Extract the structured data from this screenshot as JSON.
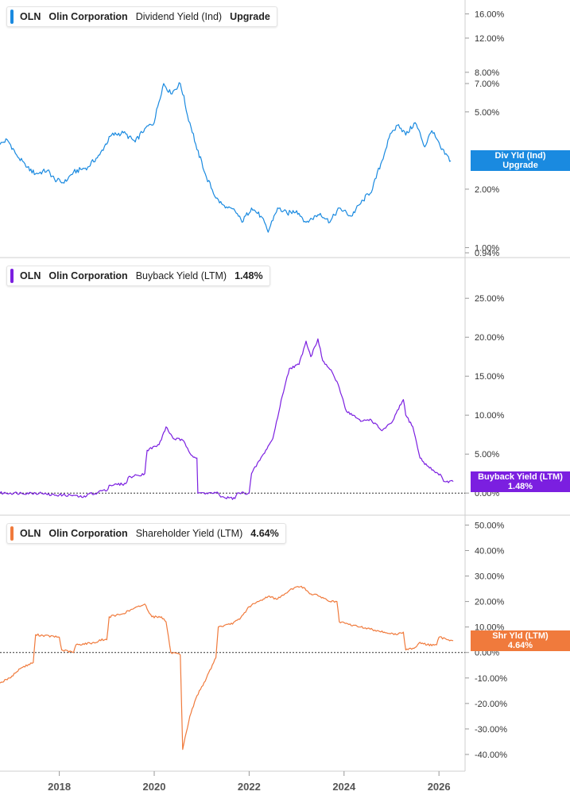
{
  "chart_data": [
    {
      "type": "line",
      "ticker": "OLN",
      "company": "Olin Corporation",
      "metric": "Dividend Yield (Ind)",
      "value_label": "Upgrade",
      "tag_lines": [
        "Div Yld (Ind)",
        "Upgrade"
      ],
      "color": "#1a8ae0",
      "scale": "log",
      "ylim": [
        0.94,
        17
      ],
      "yticks": [
        {
          "value": 16,
          "label": "16.00%"
        },
        {
          "value": 12,
          "label": "12.00%"
        },
        {
          "value": 8,
          "label": "8.00%"
        },
        {
          "value": 7,
          "label": "7.00%"
        },
        {
          "value": 5,
          "label": "5.00%"
        },
        {
          "value": 2,
          "label": "2.00%"
        },
        {
          "value": 1,
          "label": "1.00%"
        },
        {
          "value": 0.94,
          "label": "0.94%"
        }
      ],
      "points": [
        [
          2016.75,
          3.4
        ],
        [
          2016.9,
          3.6
        ],
        [
          2017.1,
          3.0
        ],
        [
          2017.3,
          2.6
        ],
        [
          2017.5,
          2.4
        ],
        [
          2017.75,
          2.5
        ],
        [
          2017.9,
          2.25
        ],
        [
          2018.1,
          2.15
        ],
        [
          2018.3,
          2.45
        ],
        [
          2018.6,
          2.6
        ],
        [
          2018.85,
          3.0
        ],
        [
          2019.1,
          3.8
        ],
        [
          2019.35,
          3.9
        ],
        [
          2019.6,
          3.5
        ],
        [
          2019.8,
          4.1
        ],
        [
          2020.0,
          4.4
        ],
        [
          2020.2,
          7.0
        ],
        [
          2020.35,
          6.2
        ],
        [
          2020.55,
          7.0
        ],
        [
          2020.7,
          4.8
        ],
        [
          2020.9,
          3.2
        ],
        [
          2021.1,
          2.3
        ],
        [
          2021.3,
          1.8
        ],
        [
          2021.5,
          1.6
        ],
        [
          2021.7,
          1.55
        ],
        [
          2021.85,
          1.35
        ],
        [
          2022.05,
          1.6
        ],
        [
          2022.25,
          1.45
        ],
        [
          2022.4,
          1.2
        ],
        [
          2022.6,
          1.6
        ],
        [
          2022.8,
          1.5
        ],
        [
          2023.0,
          1.55
        ],
        [
          2023.2,
          1.35
        ],
        [
          2023.5,
          1.5
        ],
        [
          2023.7,
          1.35
        ],
        [
          2023.9,
          1.6
        ],
        [
          2024.15,
          1.45
        ],
        [
          2024.4,
          1.75
        ],
        [
          2024.6,
          2.0
        ],
        [
          2024.8,
          2.8
        ],
        [
          2025.0,
          3.9
        ],
        [
          2025.15,
          4.3
        ],
        [
          2025.3,
          3.8
        ],
        [
          2025.5,
          4.4
        ],
        [
          2025.7,
          3.3
        ],
        [
          2025.85,
          4.0
        ],
        [
          2026.05,
          3.2
        ],
        [
          2026.25,
          2.8
        ]
      ]
    },
    {
      "type": "line",
      "ticker": "OLN",
      "company": "Olin Corporation",
      "metric": "Buyback Yield (LTM)",
      "value_label": "1.48%",
      "tag_lines": [
        "Buyback Yield (LTM)",
        "1.48%"
      ],
      "color": "#7b1fe0",
      "scale": "linear",
      "ylim": [
        -1,
        29
      ],
      "yticks": [
        {
          "value": 25,
          "label": "25.00%"
        },
        {
          "value": 20,
          "label": "20.00%"
        },
        {
          "value": 15,
          "label": "15.00%"
        },
        {
          "value": 10,
          "label": "10.00%"
        },
        {
          "value": 5,
          "label": "5.00%"
        },
        {
          "value": 0,
          "label": "0.00%"
        }
      ],
      "points": [
        [
          2016.75,
          0
        ],
        [
          2017.7,
          0
        ],
        [
          2017.75,
          -0.2
        ],
        [
          2018.35,
          -0.3
        ],
        [
          2018.4,
          -0.5
        ],
        [
          2018.55,
          -0.5
        ],
        [
          2018.6,
          -0.1
        ],
        [
          2018.8,
          0
        ],
        [
          2018.85,
          0.3
        ],
        [
          2019.0,
          0.3
        ],
        [
          2019.05,
          1.0
        ],
        [
          2019.4,
          1.2
        ],
        [
          2019.45,
          2.0
        ],
        [
          2019.8,
          2.5
        ],
        [
          2019.85,
          5.5
        ],
        [
          2020.1,
          6.2
        ],
        [
          2020.25,
          8.5
        ],
        [
          2020.4,
          7.0
        ],
        [
          2020.6,
          6.8
        ],
        [
          2020.8,
          4.8
        ],
        [
          2020.9,
          4.5
        ],
        [
          2020.92,
          0
        ],
        [
          2021.1,
          0
        ],
        [
          2021.35,
          0
        ],
        [
          2021.4,
          -0.5
        ],
        [
          2021.7,
          -0.7
        ],
        [
          2021.75,
          0
        ],
        [
          2022.0,
          0
        ],
        [
          2022.05,
          2.5
        ],
        [
          2022.3,
          5.0
        ],
        [
          2022.5,
          7.0
        ],
        [
          2022.7,
          12.5
        ],
        [
          2022.85,
          16.0
        ],
        [
          2023.05,
          16.5
        ],
        [
          2023.2,
          19.5
        ],
        [
          2023.3,
          17.5
        ],
        [
          2023.45,
          19.8
        ],
        [
          2023.55,
          17.0
        ],
        [
          2023.75,
          15.5
        ],
        [
          2023.9,
          13.5
        ],
        [
          2024.05,
          10.5
        ],
        [
          2024.2,
          10.0
        ],
        [
          2024.35,
          9.2
        ],
        [
          2024.55,
          9.5
        ],
        [
          2024.8,
          8.0
        ],
        [
          2025.0,
          9.0
        ],
        [
          2025.25,
          12.0
        ],
        [
          2025.3,
          10.0
        ],
        [
          2025.45,
          8.5
        ],
        [
          2025.6,
          4.5
        ],
        [
          2025.75,
          3.5
        ],
        [
          2025.9,
          2.8
        ],
        [
          2026.05,
          2.2
        ],
        [
          2026.1,
          1.5
        ],
        [
          2026.3,
          1.48
        ]
      ]
    },
    {
      "type": "line",
      "ticker": "OLN",
      "company": "Olin Corporation",
      "metric": "Shareholder Yield (LTM)",
      "value_label": "4.64%",
      "tag_lines": [
        "Shr Yld (LTM)",
        "4.64%"
      ],
      "color": "#f07a3c",
      "scale": "linear",
      "ylim": [
        -45,
        52
      ],
      "yticks": [
        {
          "value": 50,
          "label": "50.00%"
        },
        {
          "value": 40,
          "label": "40.00%"
        },
        {
          "value": 30,
          "label": "30.00%"
        },
        {
          "value": 20,
          "label": "20.00%"
        },
        {
          "value": 10,
          "label": "10.00%"
        },
        {
          "value": 0,
          "label": "0.00%"
        },
        {
          "value": -10,
          "label": "-10.00%"
        },
        {
          "value": -20,
          "label": "-20.00%"
        },
        {
          "value": -30,
          "label": "-30.00%"
        },
        {
          "value": -40,
          "label": "-40.00%"
        }
      ],
      "points": [
        [
          2016.75,
          -12
        ],
        [
          2016.95,
          -10
        ],
        [
          2017.2,
          -6
        ],
        [
          2017.45,
          -4
        ],
        [
          2017.5,
          7
        ],
        [
          2018.0,
          6
        ],
        [
          2018.05,
          1
        ],
        [
          2018.3,
          0
        ],
        [
          2018.35,
          3
        ],
        [
          2018.8,
          4
        ],
        [
          2018.85,
          5
        ],
        [
          2019.0,
          5
        ],
        [
          2019.05,
          14
        ],
        [
          2019.3,
          15
        ],
        [
          2019.55,
          17
        ],
        [
          2019.8,
          19
        ],
        [
          2019.95,
          14
        ],
        [
          2020.15,
          14
        ],
        [
          2020.25,
          12
        ],
        [
          2020.35,
          0
        ],
        [
          2020.55,
          -1
        ],
        [
          2020.6,
          -38
        ],
        [
          2020.75,
          -25
        ],
        [
          2020.9,
          -17
        ],
        [
          2021.1,
          -10
        ],
        [
          2021.3,
          -2
        ],
        [
          2021.35,
          10
        ],
        [
          2021.6,
          11
        ],
        [
          2021.8,
          13
        ],
        [
          2022.0,
          18
        ],
        [
          2022.2,
          20
        ],
        [
          2022.4,
          22
        ],
        [
          2022.6,
          21
        ],
        [
          2022.75,
          23
        ],
        [
          2022.9,
          25
        ],
        [
          2023.1,
          26
        ],
        [
          2023.3,
          23
        ],
        [
          2023.5,
          22
        ],
        [
          2023.7,
          20
        ],
        [
          2023.85,
          20
        ],
        [
          2023.9,
          12
        ],
        [
          2024.1,
          11
        ],
        [
          2024.35,
          10
        ],
        [
          2024.6,
          9
        ],
        [
          2024.85,
          8
        ],
        [
          2025.1,
          7
        ],
        [
          2025.25,
          8
        ],
        [
          2025.3,
          1
        ],
        [
          2025.5,
          2
        ],
        [
          2025.6,
          4
        ],
        [
          2025.75,
          3
        ],
        [
          2025.95,
          3
        ],
        [
          2026.0,
          6
        ],
        [
          2026.3,
          4.64
        ]
      ]
    }
  ],
  "x_axis": {
    "ticks": [
      {
        "value": 2018,
        "label": "2018"
      },
      {
        "value": 2020,
        "label": "2020"
      },
      {
        "value": 2022,
        "label": "2022"
      },
      {
        "value": 2024,
        "label": "2024"
      },
      {
        "value": 2026,
        "label": "2026"
      }
    ],
    "range": [
      2016.75,
      2026.55
    ]
  },
  "colors": {
    "grid_border": "#cfcfcf",
    "zero_line": "#333333"
  }
}
